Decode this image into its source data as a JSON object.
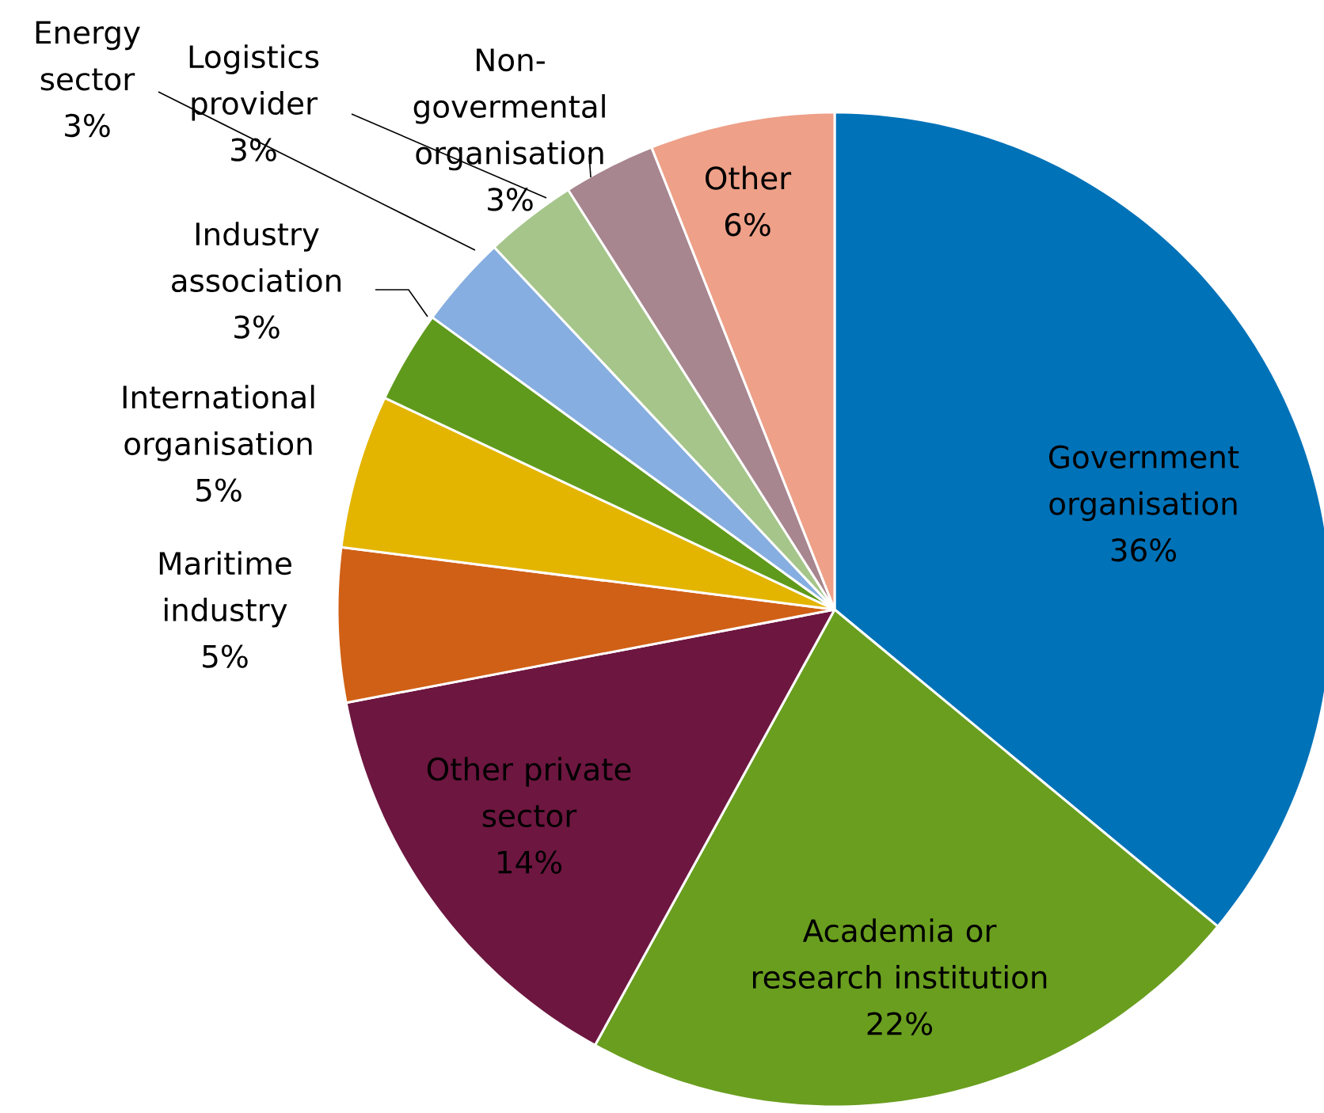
{
  "chart_data": {
    "type": "pie",
    "categories": [
      "Government organisation",
      "Academia or research institution",
      "Other private sector",
      "Maritime industry",
      "International organisation",
      "Industry association",
      "Energy sector",
      "Logistics provider",
      "Non-govermental organisation",
      "Other"
    ],
    "values": [
      36,
      22,
      14,
      5,
      5,
      3,
      3,
      3,
      3,
      6
    ],
    "value_labels": [
      "36%",
      "22%",
      "14%",
      "5%",
      "5%",
      "3%",
      "3%",
      "3%",
      "3%",
      "6%"
    ],
    "colors": [
      "#0072b8",
      "#6a9e1f",
      "#6d1640",
      "#d06016",
      "#e3b500",
      "#5f9a1c",
      "#86aee0",
      "#a5c58a",
      "#a8868f",
      "#eea088"
    ]
  }
}
